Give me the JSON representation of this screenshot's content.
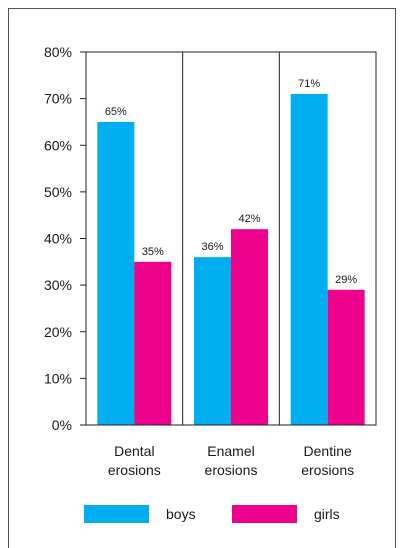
{
  "chart_data": {
    "type": "bar",
    "categories": [
      [
        "Dental",
        "erosions"
      ],
      [
        "Enamel",
        "erosions"
      ],
      [
        "Dentine",
        "erosions"
      ]
    ],
    "series": [
      {
        "name": "boys",
        "values": [
          65,
          36,
          71
        ],
        "color": "#00aeef"
      },
      {
        "name": "girls",
        "values": [
          35,
          42,
          29
        ],
        "color": "#ec008c"
      }
    ],
    "value_labels": [
      [
        "65%",
        "36%",
        "71%"
      ],
      [
        "35%",
        "42%",
        "29%"
      ]
    ],
    "y_ticks": [
      0,
      10,
      20,
      30,
      40,
      50,
      60,
      70,
      80
    ],
    "y_tick_labels": [
      "0%",
      "10%",
      "20%",
      "30%",
      "40%",
      "50%",
      "60%",
      "70%",
      "80%"
    ],
    "ylim": [
      0,
      80
    ],
    "grid": false,
    "category_separators": true,
    "legend_position": "bottom"
  }
}
